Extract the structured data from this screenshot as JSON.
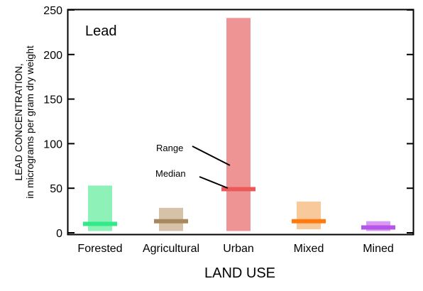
{
  "chart_data": {
    "type": "bar",
    "title": "Lead",
    "xlabel": "LAND USE",
    "ylabel": [
      "LEAD CONCENTRATION,",
      "in micrograms per gram dry weight"
    ],
    "ylim": [
      0,
      250
    ],
    "yticks": [
      0,
      50,
      100,
      150,
      200,
      250
    ],
    "grid": false,
    "categories": [
      "Forested",
      "Agricultural",
      "Urban",
      "Mixed",
      "Mined"
    ],
    "series": [
      {
        "ranges": [
          [
            2,
            53
          ],
          [
            2,
            28
          ],
          [
            2,
            241
          ],
          [
            4,
            35
          ],
          [
            2,
            13
          ]
        ],
        "medians": [
          10,
          13,
          49,
          13,
          6
        ],
        "range_colors": [
          "#8ef2b8",
          "#d6c1a9",
          "#ef9494",
          "#f8c99b",
          "#d99af2"
        ],
        "median_colors": [
          "#34e98a",
          "#a8875c",
          "#ec5959",
          "#ff7b12",
          "#b655e8"
        ]
      }
    ],
    "annotations": [
      "Range",
      "Median"
    ]
  }
}
